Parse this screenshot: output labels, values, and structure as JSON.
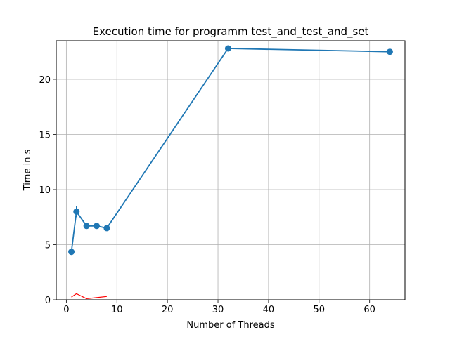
{
  "chart_data": {
    "type": "line",
    "title": "Execution time for programm test_and_test_and_set",
    "xlabel": "Number of Threads",
    "ylabel": "Time in s",
    "xlim": [
      -2,
      67
    ],
    "ylim": [
      0,
      23.5
    ],
    "xticks": [
      0,
      10,
      20,
      30,
      40,
      50,
      60
    ],
    "yticks": [
      0,
      5,
      10,
      15,
      20
    ],
    "grid": true,
    "series": [
      {
        "color": "#1f77b4",
        "marker": "circle",
        "x": [
          1,
          2,
          4,
          6,
          8,
          32,
          64
        ],
        "y": [
          4.35,
          8.0,
          6.7,
          6.7,
          6.5,
          22.8,
          22.5
        ],
        "error": [
          0.05,
          0.5,
          0.1,
          0.1,
          0.1,
          0.05,
          0.05
        ]
      },
      {
        "color": "#ff0000",
        "marker": "none",
        "x": [
          1,
          2,
          4,
          6,
          8
        ],
        "y": [
          0.25,
          0.55,
          0.1,
          0.2,
          0.3
        ]
      }
    ]
  }
}
